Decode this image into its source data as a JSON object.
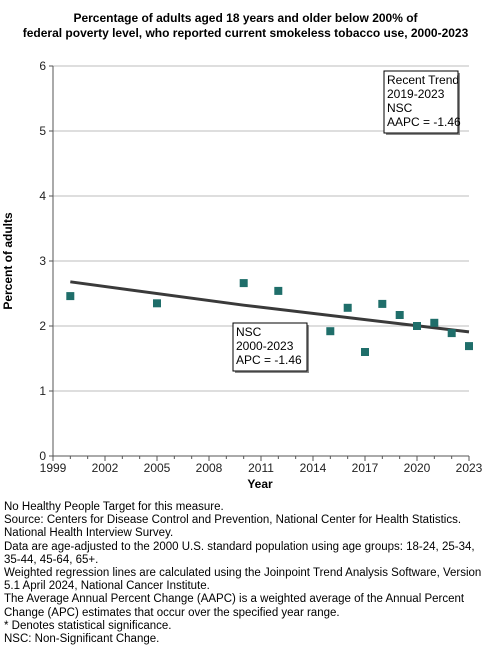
{
  "chart_data": {
    "type": "scatter",
    "title_lines": [
      "Percentage of adults aged 18 years and older below 200% of",
      "federal poverty level, who reported current smokeless tobacco use, 2000-2023"
    ],
    "xlabel": "Year",
    "ylabel": "Percent of adults",
    "xlim": [
      1999,
      2023
    ],
    "ylim": [
      0,
      6
    ],
    "x_ticks": [
      1999,
      2002,
      2005,
      2008,
      2011,
      2014,
      2017,
      2020,
      2023
    ],
    "y_ticks": [
      0,
      1,
      2,
      3,
      4,
      5,
      6
    ],
    "grid": "horizontal",
    "marker_color": "#1f6e6a",
    "line_color": "#3a3a3a",
    "series": [
      {
        "x": [
          2000,
          2005,
          2010,
          2012,
          2015,
          2016,
          2017,
          2018,
          2019,
          2020,
          2021,
          2022,
          2023
        ],
        "values": [
          2.46,
          2.35,
          2.66,
          2.54,
          1.92,
          2.28,
          1.6,
          2.34,
          2.17,
          2.0,
          2.05,
          1.89,
          1.69
        ]
      }
    ],
    "trend_line": {
      "x": [
        2000,
        2010,
        2023
      ],
      "values": [
        2.68,
        2.32,
        1.91
      ]
    },
    "annotations": {
      "overall": [
        "NSC",
        "2000-2023",
        "APC = -1.46"
      ],
      "recent": [
        "Recent Trend",
        "2019-2023",
        "NSC",
        "AAPC = -1.46"
      ]
    }
  },
  "footnotes": [
    "No Healthy People Target for this measure.",
    "Source: Centers for Disease Control and Prevention, National Center for Health Statistics. National Health Interview Survey.",
    "Data are age-adjusted to the 2000 U.S. standard population using age groups: 18-24, 25-34, 35-44, 45-64, 65+.",
    "Weighted regression lines are calculated using the Joinpoint Trend Analysis Software, Version 5.1 April 2024, National Cancer Institute.",
    "The Average Annual Percent Change (AAPC) is a weighted average of the Annual Percent Change (APC) estimates that occur over the specified year range.",
    "* Denotes statistical significance.",
    "NSC: Non-Significant Change."
  ]
}
